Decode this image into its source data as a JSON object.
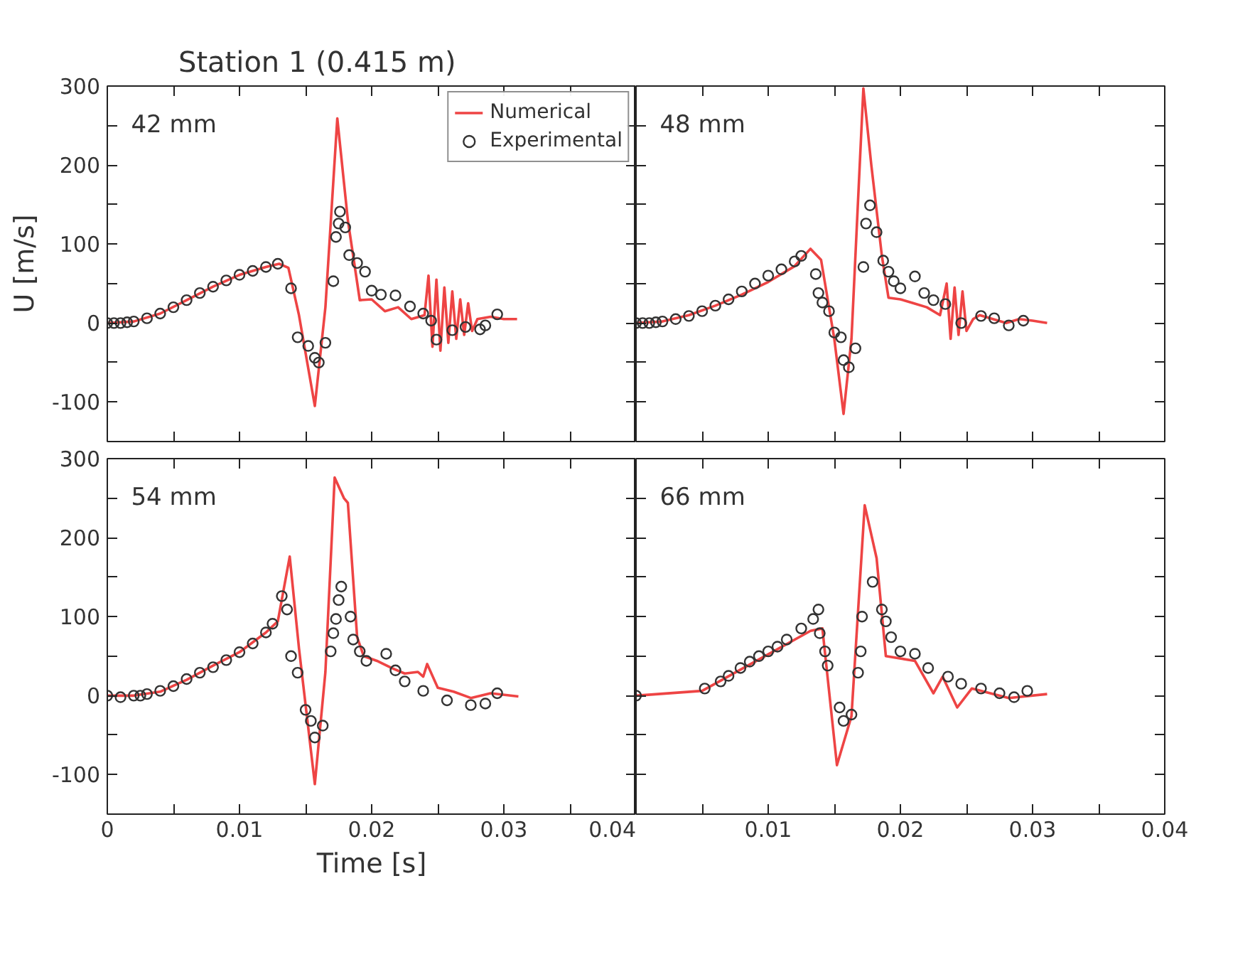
{
  "chart_data": [
    {
      "type": "line",
      "title": "Station 1 (0.415 m)",
      "ylabel": "U [m/s]",
      "annotations": [
        "42 mm"
      ],
      "xlim": [
        0,
        0.04
      ],
      "ylim": [
        -150,
        300
      ],
      "xticks": [
        {
          "value": 0,
          "label": null
        },
        {
          "value": 0.005,
          "label": null
        },
        {
          "value": 0.01,
          "label": null
        },
        {
          "value": 0.015,
          "label": null
        },
        {
          "value": 0.02,
          "label": null
        },
        {
          "value": 0.025,
          "label": null
        },
        {
          "value": 0.03,
          "label": null
        },
        {
          "value": 0.035,
          "label": null
        },
        {
          "value": 0.04,
          "label": null
        }
      ],
      "yticks": [
        -100,
        {
          "value": -50,
          "label": null
        },
        0,
        {
          "value": 50,
          "label": null
        },
        100,
        {
          "value": 150,
          "label": null
        },
        200,
        {
          "value": 250,
          "label": null
        },
        300
      ],
      "tick_labels": "y",
      "legend": "top right",
      "series": [
        {
          "name": "Numerical",
          "color": "#ee4444",
          "x": [
            0,
            0.002,
            0.004,
            0.006,
            0.008,
            0.01,
            0.012,
            0.013,
            0.0137,
            0.0145,
            0.0157,
            0.0165,
            0.0174,
            0.0182,
            0.0191,
            0.02,
            0.021,
            0.022,
            0.023,
            0.024,
            0.0243,
            0.0246,
            0.0249,
            0.0252,
            0.0255,
            0.0258,
            0.0261,
            0.0264,
            0.0267,
            0.027,
            0.0273,
            0.0276,
            0.028,
            0.029,
            0.03,
            0.031
          ],
          "values": [
            0,
            2,
            12,
            29,
            46,
            61,
            71,
            75,
            70,
            10,
            -105,
            20,
            259,
            130,
            29,
            30,
            15,
            20,
            5,
            10,
            60,
            -30,
            55,
            -35,
            45,
            -25,
            40,
            -20,
            30,
            -15,
            25,
            -10,
            5,
            8,
            5,
            5
          ]
        },
        {
          "name": "Experimental",
          "type": "scatter",
          "marker": "circle",
          "color": "#333333",
          "x": [
            0,
            0.0005,
            0.001,
            0.0015,
            0.002,
            0.003,
            0.004,
            0.005,
            0.006,
            0.007,
            0.008,
            0.009,
            0.01,
            0.011,
            0.012,
            0.0129,
            0.0139,
            0.0144,
            0.0152,
            0.0157,
            0.016,
            0.0165,
            0.0171,
            0.0173,
            0.0175,
            0.0176,
            0.018,
            0.0183,
            0.0189,
            0.0195,
            0.02,
            0.0207,
            0.0218,
            0.0229,
            0.0239,
            0.0245,
            0.0249,
            0.0261,
            0.0271,
            0.0282,
            0.0286,
            0.0295
          ],
          "values": [
            0,
            0,
            0,
            1,
            2,
            6,
            12,
            20,
            29,
            38,
            46,
            54,
            61,
            66,
            71,
            75,
            44,
            -18,
            -29,
            -44,
            -50,
            -25,
            53,
            109,
            126,
            141,
            121,
            86,
            76,
            65,
            41,
            36,
            35,
            21,
            12,
            3,
            -21,
            -9,
            -5,
            -8,
            -3,
            11
          ]
        }
      ]
    },
    {
      "type": "line",
      "annotations": [
        "48 mm"
      ],
      "xlim": [
        0,
        0.04
      ],
      "ylim": [
        -150,
        300
      ],
      "xticks": [
        {
          "value": 0,
          "label": null
        },
        {
          "value": 0.005,
          "label": null
        },
        {
          "value": 0.01,
          "label": null
        },
        {
          "value": 0.015,
          "label": null
        },
        {
          "value": 0.02,
          "label": null
        },
        {
          "value": 0.025,
          "label": null
        },
        {
          "value": 0.03,
          "label": null
        },
        {
          "value": 0.035,
          "label": null
        },
        {
          "value": 0.04,
          "label": null
        }
      ],
      "yticks": [
        {
          "value": -100,
          "label": null
        },
        {
          "value": -50,
          "label": null
        },
        {
          "value": 0,
          "label": null
        },
        {
          "value": 50,
          "label": null
        },
        {
          "value": 100,
          "label": null
        },
        {
          "value": 150,
          "label": null
        },
        {
          "value": 200,
          "label": null
        },
        {
          "value": 250,
          "label": null
        },
        {
          "value": 300,
          "label": null
        }
      ],
      "tick_labels": false,
      "series": [
        {
          "color": "#ee4444",
          "x": [
            0,
            0.002,
            0.004,
            0.006,
            0.008,
            0.01,
            0.012,
            0.0132,
            0.014,
            0.015,
            0.0157,
            0.0163,
            0.0172,
            0.0178,
            0.0186,
            0.0191,
            0.02,
            0.021,
            0.022,
            0.023,
            0.0235,
            0.0238,
            0.0241,
            0.0244,
            0.0247,
            0.025,
            0.0255,
            0.026,
            0.027,
            0.028,
            0.029,
            0.03,
            0.0311
          ],
          "values": [
            0,
            2,
            10,
            22,
            36,
            52,
            72,
            94,
            80,
            -20,
            -115,
            -20,
            297,
            200,
            85,
            32,
            30,
            25,
            20,
            10,
            50,
            -20,
            45,
            -15,
            40,
            -10,
            5,
            10,
            5,
            0,
            5,
            3,
            0
          ]
        },
        {
          "type": "scatter",
          "marker": "circle",
          "color": "#333333",
          "x": [
            0,
            0.0005,
            0.001,
            0.0015,
            0.002,
            0.003,
            0.004,
            0.005,
            0.006,
            0.007,
            0.008,
            0.009,
            0.01,
            0.011,
            0.012,
            0.0125,
            0.0136,
            0.0138,
            0.0141,
            0.0146,
            0.015,
            0.0155,
            0.0157,
            0.0161,
            0.0166,
            0.0172,
            0.0174,
            0.0177,
            0.0182,
            0.0187,
            0.0191,
            0.0195,
            0.02,
            0.0211,
            0.0218,
            0.0225,
            0.0234,
            0.0246,
            0.0261,
            0.0271,
            0.0282,
            0.0293
          ],
          "values": [
            0,
            0,
            0,
            1,
            2,
            5,
            9,
            15,
            22,
            30,
            40,
            50,
            60,
            68,
            78,
            85,
            62,
            38,
            26,
            15,
            -12,
            -18,
            -47,
            -56,
            -32,
            71,
            126,
            149,
            115,
            79,
            65,
            53,
            44,
            59,
            38,
            29,
            24,
            0,
            9,
            6,
            -3,
            3
          ]
        }
      ]
    },
    {
      "type": "line",
      "xlabel": "Time [s]",
      "annotations": [
        "54 mm"
      ],
      "xlim": [
        0,
        0.04
      ],
      "ylim": [
        -150,
        300
      ],
      "xticks": [
        0,
        {
          "value": 0.005,
          "label": null
        },
        0.01,
        {
          "value": 0.015,
          "label": null
        },
        0.02,
        {
          "value": 0.025,
          "label": null
        },
        0.03,
        {
          "value": 0.035,
          "label": null
        },
        0.04
      ],
      "yticks": [
        -100,
        {
          "value": -50,
          "label": null
        },
        0,
        {
          "value": 50,
          "label": null
        },
        100,
        {
          "value": 150,
          "label": null
        },
        200,
        {
          "value": 250,
          "label": null
        },
        300
      ],
      "series": [
        {
          "color": "#ee4444",
          "x": [
            0,
            0.002,
            0.004,
            0.006,
            0.008,
            0.01,
            0.012,
            0.0129,
            0.0138,
            0.0145,
            0.0157,
            0.0165,
            0.0172,
            0.0179,
            0.0182,
            0.0189,
            0.0194,
            0.0204,
            0.0215,
            0.0225,
            0.0235,
            0.0239,
            0.0242,
            0.025,
            0.0262,
            0.0275,
            0.029,
            0.0311
          ],
          "values": [
            0,
            0,
            5,
            20,
            38,
            55,
            80,
            94,
            176,
            60,
            -112,
            30,
            276,
            250,
            244,
            74,
            50,
            44,
            35,
            28,
            30,
            24,
            40,
            10,
            5,
            -3,
            3,
            -1
          ]
        },
        {
          "type": "scatter",
          "marker": "circle",
          "color": "#333333",
          "x": [
            0,
            0.001,
            0.002,
            0.0025,
            0.003,
            0.004,
            0.005,
            0.006,
            0.007,
            0.008,
            0.009,
            0.01,
            0.011,
            0.012,
            0.0125,
            0.0132,
            0.0136,
            0.0139,
            0.0144,
            0.015,
            0.0154,
            0.0157,
            0.0163,
            0.0169,
            0.0171,
            0.0173,
            0.0175,
            0.0177,
            0.0184,
            0.0186,
            0.0191,
            0.0196,
            0.0211,
            0.0218,
            0.0225,
            0.0239,
            0.0257,
            0.0275,
            0.0286,
            0.0295
          ],
          "values": [
            0,
            -2,
            0,
            0,
            2,
            6,
            12,
            21,
            29,
            36,
            45,
            55,
            66,
            80,
            91,
            126,
            109,
            50,
            29,
            -18,
            -32,
            -53,
            -38,
            56,
            79,
            97,
            121,
            138,
            100,
            71,
            56,
            44,
            53,
            32,
            18,
            6,
            -6,
            -12,
            -10,
            3
          ]
        }
      ]
    },
    {
      "type": "line",
      "annotations": [
        "66 mm"
      ],
      "xlim": [
        0,
        0.04
      ],
      "ylim": [
        -150,
        300
      ],
      "xticks": [
        {
          "value": 0,
          "label": null
        },
        {
          "value": 0.005,
          "label": null
        },
        0.01,
        {
          "value": 0.015,
          "label": null
        },
        0.02,
        {
          "value": 0.025,
          "label": null
        },
        0.03,
        {
          "value": 0.035,
          "label": null
        },
        0.04
      ],
      "yticks": [
        {
          "value": -100,
          "label": null
        },
        {
          "value": -50,
          "label": null
        },
        {
          "value": 0,
          "label": null
        },
        {
          "value": 50,
          "label": null
        },
        {
          "value": 100,
          "label": null
        },
        {
          "value": 150,
          "label": null
        },
        {
          "value": 200,
          "label": null
        },
        {
          "value": 250,
          "label": null
        },
        {
          "value": 300,
          "label": null
        }
      ],
      "tick_labels": "x",
      "series": [
        {
          "color": "#ee4444",
          "x": [
            0,
            0.005,
            0.0104,
            0.0132,
            0.0141,
            0.0152,
            0.0163,
            0.0173,
            0.0182,
            0.0189,
            0.0211,
            0.0225,
            0.0232,
            0.0243,
            0.0254,
            0.0282,
            0.0311
          ],
          "values": [
            0,
            6,
            56,
            82,
            85,
            -88,
            -26,
            241,
            174,
            50,
            44,
            3,
            24,
            -15,
            9,
            -3,
            2
          ]
        },
        {
          "type": "scatter",
          "marker": "circle",
          "color": "#333333",
          "x": [
            0,
            0.0052,
            0.0064,
            0.007,
            0.0079,
            0.0086,
            0.0093,
            0.01,
            0.0107,
            0.0114,
            0.0125,
            0.0134,
            0.0138,
            0.0139,
            0.0143,
            0.0145,
            0.0154,
            0.0157,
            0.0163,
            0.0168,
            0.017,
            0.0171,
            0.0179,
            0.0186,
            0.0189,
            0.0193,
            0.02,
            0.0211,
            0.0221,
            0.0236,
            0.0246,
            0.0261,
            0.0275,
            0.0286,
            0.0296
          ],
          "values": [
            0,
            9,
            18,
            25,
            35,
            43,
            50,
            56,
            62,
            71,
            85,
            97,
            109,
            79,
            56,
            38,
            -15,
            -32,
            -24,
            29,
            56,
            100,
            144,
            109,
            94,
            74,
            56,
            53,
            35,
            24,
            15,
            9,
            3,
            -2,
            6
          ]
        }
      ]
    }
  ]
}
